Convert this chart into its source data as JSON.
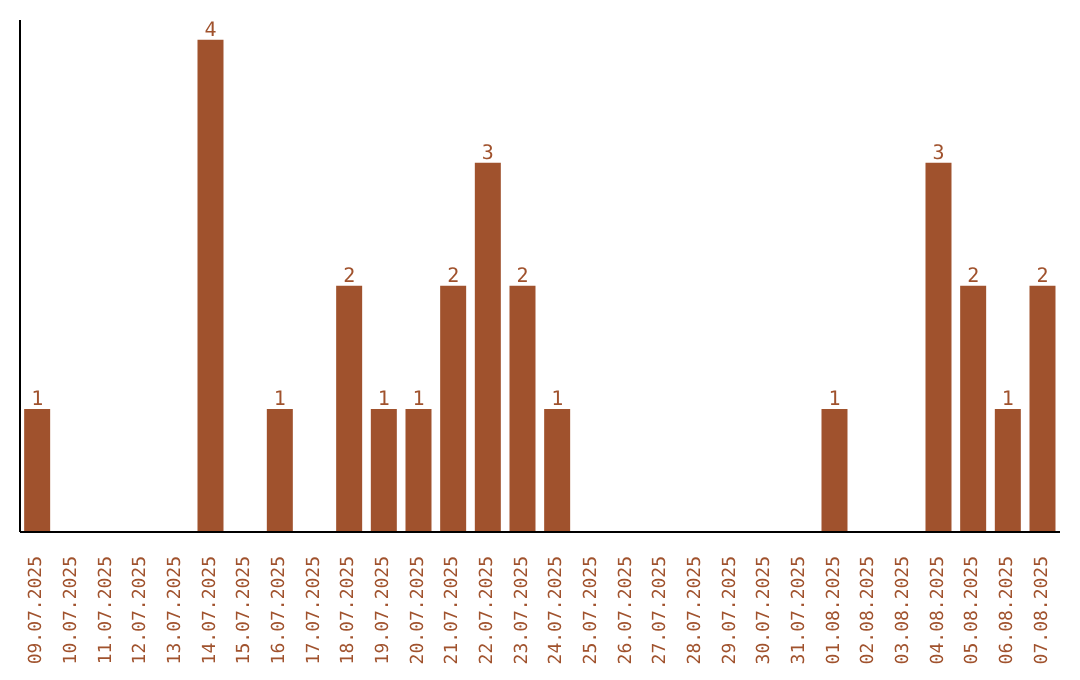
{
  "chart_data": {
    "type": "bar",
    "categories": [
      "09.07.2025",
      "10.07.2025",
      "11.07.2025",
      "12.07.2025",
      "13.07.2025",
      "14.07.2025",
      "15.07.2025",
      "16.07.2025",
      "17.07.2025",
      "18.07.2025",
      "19.07.2025",
      "20.07.2025",
      "21.07.2025",
      "22.07.2025",
      "23.07.2025",
      "24.07.2025",
      "25.07.2025",
      "26.07.2025",
      "27.07.2025",
      "28.07.2025",
      "29.07.2025",
      "30.07.2025",
      "31.07.2025",
      "01.08.2025",
      "02.08.2025",
      "03.08.2025",
      "04.08.2025",
      "05.08.2025",
      "06.08.2025",
      "07.08.2025"
    ],
    "values": [
      1,
      0,
      0,
      0,
      0,
      4,
      0,
      1,
      0,
      2,
      1,
      1,
      2,
      3,
      2,
      1,
      0,
      0,
      0,
      0,
      0,
      0,
      0,
      1,
      0,
      0,
      3,
      2,
      1,
      2
    ],
    "value_labels": [
      "1",
      null,
      null,
      null,
      null,
      "4",
      null,
      "1",
      null,
      "2",
      "1",
      "1",
      "2",
      "3",
      "2",
      "1",
      null,
      null,
      null,
      null,
      null,
      null,
      null,
      "1",
      null,
      null,
      "3",
      "2",
      "1",
      "2"
    ],
    "color": "#a0522d",
    "grid": false,
    "legend": false
  }
}
